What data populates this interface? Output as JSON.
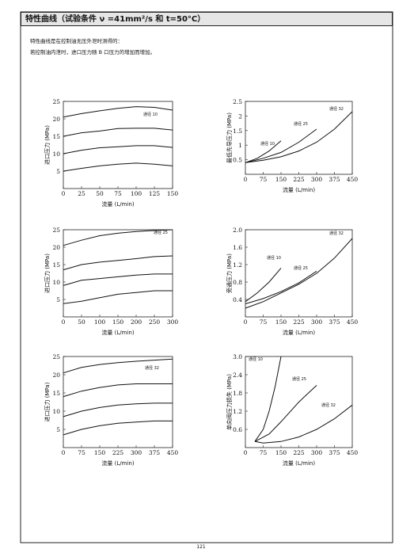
{
  "header": {
    "title": "特性曲线（试验条件 ν =41mm²/s 和 t=50°C）"
  },
  "notes": [
    "特性曲线是在控制油无压外泄时测得的：",
    "若控制油内泄时，进口压力随 B 口压力的增加而增加。"
  ],
  "page_number": "121",
  "chart_data": [
    {
      "type": "line",
      "xlabel": "流量 (L/min)",
      "ylabel": "进口压力 (MPa)",
      "annotations": [
        "通径 10"
      ],
      "xlim": [
        0,
        150
      ],
      "xticks": [
        0,
        25,
        50,
        75,
        100,
        125,
        150
      ],
      "ylim": [
        0,
        25
      ],
      "yticks": [
        5,
        10,
        15,
        20,
        25
      ],
      "x": [
        0,
        25,
        50,
        75,
        100,
        125,
        150
      ],
      "series": [
        {
          "values": [
            20.5,
            21.5,
            22.3,
            23,
            23.5,
            23.3,
            22.5
          ]
        },
        {
          "values": [
            15,
            16,
            16.5,
            17.2,
            17.3,
            17.3,
            16.8
          ]
        },
        {
          "values": [
            10,
            11,
            11.7,
            12,
            12.3,
            12.3,
            11.8
          ]
        },
        {
          "values": [
            5,
            5.8,
            6.5,
            7,
            7.3,
            7,
            6.5
          ]
        }
      ]
    },
    {
      "type": "line",
      "xlabel": "流量 (L/min)",
      "ylabel": "最低先导压力 (MPa)",
      "annotations": [
        "通径 10",
        "通径 25",
        "通径 32"
      ],
      "xlim": [
        0,
        450
      ],
      "xticks": [
        0,
        75,
        150,
        225,
        300,
        375,
        450
      ],
      "ylim": [
        0,
        2.5
      ],
      "yticks": [
        0.5,
        1,
        1.5,
        2,
        2.5
      ],
      "series": [
        {
          "x": [
            0,
            50,
            100,
            150
          ],
          "values": [
            0.4,
            0.55,
            0.8,
            1.15
          ]
        },
        {
          "x": [
            0,
            75,
            150,
            225,
            300
          ],
          "values": [
            0.4,
            0.55,
            0.75,
            1.1,
            1.55
          ]
        },
        {
          "x": [
            0,
            75,
            150,
            225,
            300,
            375,
            450
          ],
          "values": [
            0.4,
            0.48,
            0.6,
            0.8,
            1.1,
            1.55,
            2.15
          ]
        }
      ]
    },
    {
      "type": "line",
      "xlabel": "流量 (L/min)",
      "ylabel": "进口压力 (MPa)",
      "annotations": [
        "通径 25"
      ],
      "xlim": [
        0,
        300
      ],
      "xticks": [
        0,
        50,
        100,
        150,
        200,
        250,
        300
      ],
      "ylim": [
        0,
        25
      ],
      "yticks": [
        5,
        10,
        15,
        20,
        25
      ],
      "x": [
        0,
        50,
        100,
        150,
        200,
        250,
        300
      ],
      "series": [
        {
          "values": [
            20.5,
            22,
            23.3,
            24,
            24.5,
            24.8,
            25
          ]
        },
        {
          "values": [
            13.5,
            15,
            15.7,
            16.2,
            16.7,
            17.3,
            17.5
          ]
        },
        {
          "values": [
            9,
            10.5,
            11,
            11.5,
            12,
            12.3,
            12.3
          ]
        },
        {
          "values": [
            3.8,
            4.5,
            5.5,
            6.5,
            7,
            7.5,
            7.5
          ]
        }
      ]
    },
    {
      "type": "line",
      "xlabel": "流量 (L/min)",
      "ylabel": "旁通压力 (MPa)",
      "annotations": [
        "通径 10",
        "通径 25",
        "通径 32"
      ],
      "xlim": [
        0,
        450
      ],
      "xticks": [
        0,
        75,
        150,
        225,
        300,
        375,
        450
      ],
      "ylim": [
        0,
        2
      ],
      "yticks": [
        0.4,
        0.8,
        1.2,
        1.6,
        {
          "value": 2,
          "label": "2.0"
        }
      ],
      "series": [
        {
          "x": [
            0,
            50,
            100,
            150
          ],
          "values": [
            0.35,
            0.55,
            0.8,
            1.12
          ]
        },
        {
          "x": [
            0,
            75,
            150,
            225,
            300
          ],
          "values": [
            0.3,
            0.42,
            0.58,
            0.78,
            1.05
          ]
        },
        {
          "x": [
            0,
            75,
            150,
            225,
            300,
            375,
            450
          ],
          "values": [
            0.2,
            0.35,
            0.55,
            0.75,
            1.0,
            1.35,
            1.8
          ]
        }
      ]
    },
    {
      "type": "line",
      "xlabel": "流量 (L/min)",
      "ylabel": "进口压力 (MPa)",
      "annotations": [
        "通径 32"
      ],
      "xlim": [
        0,
        450
      ],
      "xticks": [
        0,
        75,
        150,
        225,
        300,
        375,
        450
      ],
      "ylim": [
        0,
        25
      ],
      "yticks": [
        5,
        10,
        15,
        20,
        25
      ],
      "x": [
        0,
        75,
        150,
        225,
        300,
        375,
        450
      ],
      "series": [
        {
          "values": [
            20.5,
            22,
            22.8,
            23.3,
            23.7,
            24,
            24.3
          ]
        },
        {
          "values": [
            14,
            15.5,
            16.5,
            17.2,
            17.5,
            17.5,
            17.5
          ]
        },
        {
          "values": [
            8.5,
            10,
            11,
            11.7,
            12,
            12.2,
            12.2
          ]
        },
        {
          "values": [
            3.5,
            5,
            6,
            6.7,
            7,
            7.3,
            7.3
          ]
        }
      ]
    },
    {
      "type": "line",
      "xlabel": "流量 (L/min)",
      "ylabel": "单向阀压力损失 (MPa)",
      "annotations": [
        "通径 10",
        "通径 25",
        "通径 32"
      ],
      "xlim": [
        0,
        450
      ],
      "xticks": [
        0,
        75,
        150,
        225,
        300,
        375,
        450
      ],
      "ylim": [
        0,
        3
      ],
      "yticks": [
        0.6,
        1.2,
        1.8,
        2.4,
        {
          "value": 3,
          "label": "3.0"
        }
      ],
      "series": [
        {
          "x": [
            40,
            75,
            100,
            125,
            150
          ],
          "values": [
            0.2,
            0.6,
            1.2,
            2.0,
            3.0
          ]
        },
        {
          "x": [
            40,
            100,
            150,
            225,
            300
          ],
          "values": [
            0.2,
            0.45,
            0.85,
            1.5,
            2.05
          ]
        },
        {
          "x": [
            40,
            75,
            150,
            225,
            300,
            375,
            450
          ],
          "values": [
            0.2,
            0.15,
            0.2,
            0.35,
            0.6,
            0.95,
            1.4
          ]
        }
      ]
    }
  ]
}
